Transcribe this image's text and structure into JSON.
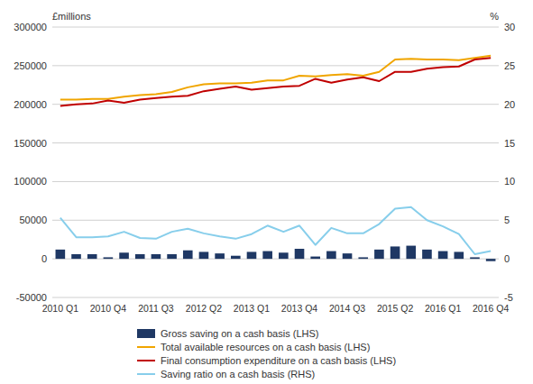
{
  "chart_data": {
    "type": "bar",
    "ylabel": "£millions",
    "y2label": "%",
    "categories": [
      "2010 Q1",
      null,
      null,
      "2010 Q4",
      null,
      null,
      "2011 Q3",
      null,
      null,
      "2012 Q2",
      null,
      null,
      "2013 Q1",
      null,
      null,
      "2013 Q4",
      null,
      null,
      "2014 Q3",
      null,
      null,
      "2015 Q2",
      null,
      null,
      "2016 Q1",
      null,
      null,
      "2016 Q4"
    ],
    "series": [
      {
        "name": "Gross saving on a cash basis (LHS)",
        "type": "bar",
        "color": "#1f3864",
        "values": [
          12000,
          6000,
          6000,
          2000,
          8000,
          6000,
          6000,
          6000,
          11000,
          9000,
          7000,
          4000,
          9000,
          10000,
          8000,
          13000,
          3000,
          10000,
          7000,
          2000,
          12000,
          16000,
          17000,
          12000,
          10000,
          9000,
          2000,
          -3000
        ]
      },
      {
        "name": "Total available resources on a cash basis (LHS)",
        "type": "line",
        "color": "#f0a500",
        "values": [
          206000,
          206000,
          207000,
          207000,
          210000,
          212000,
          213000,
          216000,
          222000,
          226000,
          227000,
          227000,
          228000,
          231000,
          231000,
          237000,
          236000,
          238000,
          239000,
          237000,
          242000,
          258000,
          259000,
          258000,
          258000,
          257000,
          260000,
          263000
        ]
      },
      {
        "name": "Final consumption expenditure on a cash basis (LHS)",
        "type": "line",
        "color": "#c00000",
        "values": [
          198000,
          200000,
          201000,
          205000,
          202000,
          206000,
          208000,
          210000,
          211000,
          217000,
          220000,
          223000,
          219000,
          221000,
          223000,
          224000,
          233000,
          228000,
          232000,
          235000,
          230000,
          242000,
          242000,
          246000,
          248000,
          249000,
          258000,
          260000
        ]
      },
      {
        "name": "Saving ratio on a cash basis (RHS)",
        "type": "line",
        "color": "#87ceeb",
        "axis": "y2",
        "values": [
          5.3,
          2.8,
          2.8,
          2.9,
          3.5,
          2.7,
          2.6,
          3.5,
          3.9,
          3.3,
          2.9,
          2.6,
          3.2,
          4.3,
          3.5,
          4.3,
          1.8,
          4.0,
          3.3,
          3.3,
          4.5,
          6.5,
          6.7,
          5.0,
          4.2,
          3.2,
          0.6,
          1.0
        ]
      }
    ],
    "ylim": [
      -50000,
      300000
    ],
    "yticks": [
      -50000,
      0,
      50000,
      100000,
      150000,
      200000,
      250000,
      300000
    ],
    "y2lim": [
      -5,
      30
    ],
    "y2ticks": [
      -5,
      0,
      5,
      10,
      15,
      20,
      25,
      30
    ],
    "grid": true,
    "legend": "bottom"
  }
}
